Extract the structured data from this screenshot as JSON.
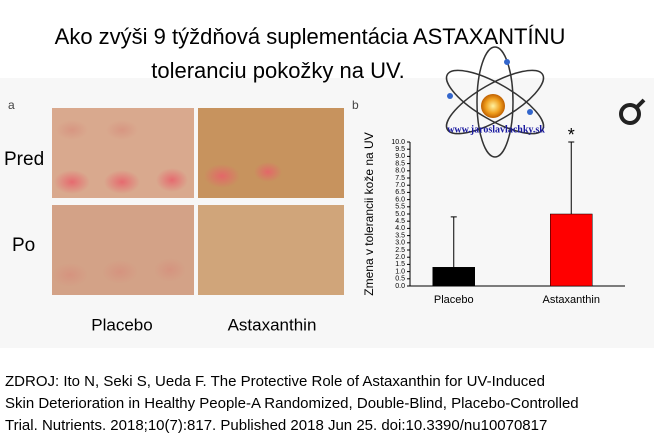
{
  "title": {
    "line1": "Ako zvýši 9 týždňová suplementácia ASTAXANTÍNU",
    "line2": "toleranciu pokožky na UV."
  },
  "watermark": "www.jaroslavlachky.sk",
  "photos": {
    "panel_label": "a",
    "row_labels": [
      "Pred",
      "Po"
    ],
    "column_labels": [
      "Placebo",
      "Astaxanthin"
    ]
  },
  "chart_data": {
    "type": "bar",
    "panel_label": "b",
    "y_label": "Zmena v tolerancii kože na UV",
    "categories": [
      "Placebo",
      "Astaxanthin"
    ],
    "series": [
      {
        "name": "Zmena",
        "colors": [
          "#000000",
          "#ff0000"
        ],
        "values": [
          1.3,
          5.0
        ],
        "errors": [
          3.5,
          5.0
        ]
      }
    ],
    "annotations": [
      {
        "category": 1,
        "text": "*"
      }
    ],
    "ylim": [
      0,
      10
    ],
    "yticks": [
      {
        "value": 0,
        "label": "0.0"
      },
      0.5,
      {
        "value": 1,
        "label": "1.0"
      },
      1.5,
      {
        "value": 2,
        "label": "2.0"
      },
      2.5,
      {
        "value": 3,
        "label": "3.0"
      },
      3.5,
      {
        "value": 4,
        "label": "4.0"
      },
      4.5,
      {
        "value": 5,
        "label": "5.0"
      },
      5.5,
      {
        "value": 6,
        "label": "6.0"
      },
      6.5,
      {
        "value": 7,
        "label": "7.0"
      },
      7.5,
      {
        "value": 8,
        "label": "8.0"
      },
      8.5,
      {
        "value": 9,
        "label": "9.0"
      },
      9.5,
      {
        "value": 10,
        "label": "10.0"
      }
    ],
    "grid": false
  },
  "source": [
    "ZDROJ: Ito N, Seki S, Ueda F. The Protective Role of Astaxanthin for UV-Induced",
    "Skin Deterioration in Healthy People-A Randomized, Double-Blind, Placebo-Controlled",
    "Trial. Nutrients. 2018;10(7):817. Published 2018 Jun 25. doi:10.3390/nu10070817"
  ]
}
